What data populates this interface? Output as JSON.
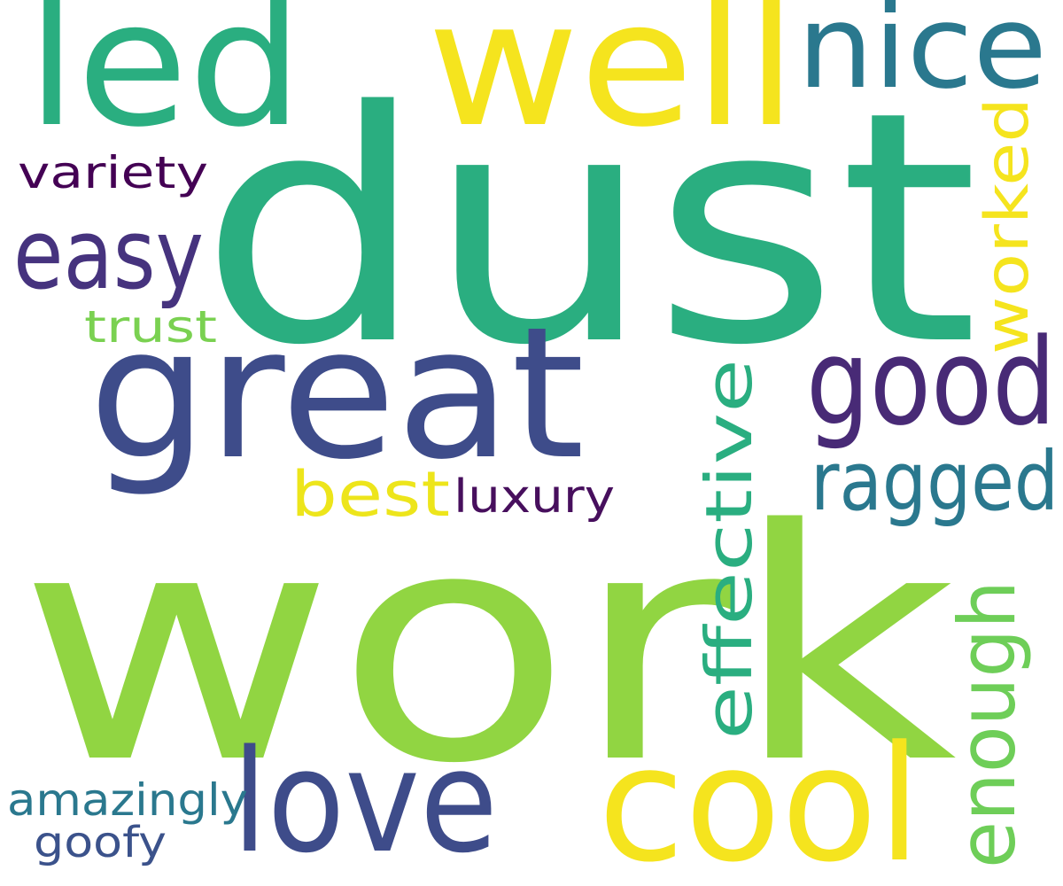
{
  "words": [
    {
      "text": "dust",
      "color": "#2AAE80"
    },
    {
      "text": "work",
      "color": "#91D542"
    },
    {
      "text": "great",
      "color": "#3E4C8A"
    },
    {
      "text": "led",
      "color": "#2AAE80"
    },
    {
      "text": "well",
      "color": "#F5E41E"
    },
    {
      "text": "nice",
      "color": "#2A788E"
    },
    {
      "text": "easy",
      "color": "#46337E"
    },
    {
      "text": "good",
      "color": "#482A76"
    },
    {
      "text": "cool",
      "color": "#F5E41E"
    },
    {
      "text": "love",
      "color": "#3E4C8A"
    },
    {
      "text": "worked",
      "color": "#F5E41E"
    },
    {
      "text": "effective",
      "color": "#2AAE80"
    },
    {
      "text": "ragged",
      "color": "#2A788E"
    },
    {
      "text": "enough",
      "color": "#6ECE58"
    },
    {
      "text": "best",
      "color": "#EDE51B"
    },
    {
      "text": "luxury",
      "color": "#470F5D"
    },
    {
      "text": "variety",
      "color": "#440154"
    },
    {
      "text": "trust",
      "color": "#7AD151"
    },
    {
      "text": "amazingly",
      "color": "#2A788E"
    },
    {
      "text": "goofy",
      "color": "#3B528B"
    }
  ]
}
